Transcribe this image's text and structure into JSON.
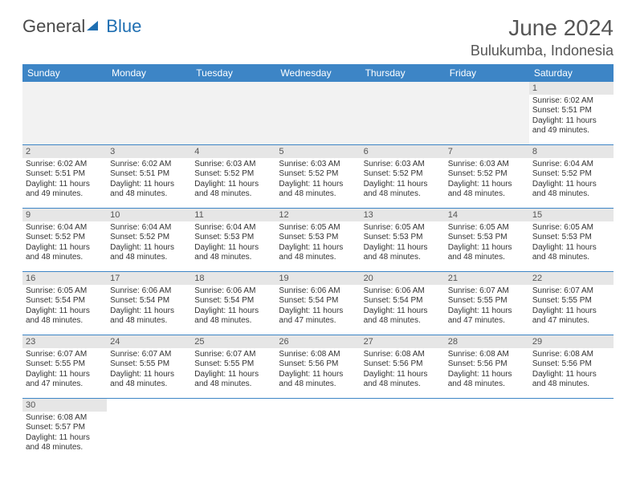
{
  "brand": {
    "part1": "General",
    "part2": "Blue"
  },
  "title": "June 2024",
  "location": "Bulukumba, Indonesia",
  "colors": {
    "header_bg": "#3d85c6",
    "header_text": "#ffffff",
    "daynum_bg": "#e6e6e6",
    "row_divider": "#3d85c6",
    "text": "#333333",
    "title_text": "#555555"
  },
  "weekdays": [
    "Sunday",
    "Monday",
    "Tuesday",
    "Wednesday",
    "Thursday",
    "Friday",
    "Saturday"
  ],
  "weeks": [
    [
      null,
      null,
      null,
      null,
      null,
      null,
      {
        "n": "1",
        "sr": "Sunrise: 6:02 AM",
        "ss": "Sunset: 5:51 PM",
        "d1": "Daylight: 11 hours",
        "d2": "and 49 minutes."
      }
    ],
    [
      {
        "n": "2",
        "sr": "Sunrise: 6:02 AM",
        "ss": "Sunset: 5:51 PM",
        "d1": "Daylight: 11 hours",
        "d2": "and 49 minutes."
      },
      {
        "n": "3",
        "sr": "Sunrise: 6:02 AM",
        "ss": "Sunset: 5:51 PM",
        "d1": "Daylight: 11 hours",
        "d2": "and 48 minutes."
      },
      {
        "n": "4",
        "sr": "Sunrise: 6:03 AM",
        "ss": "Sunset: 5:52 PM",
        "d1": "Daylight: 11 hours",
        "d2": "and 48 minutes."
      },
      {
        "n": "5",
        "sr": "Sunrise: 6:03 AM",
        "ss": "Sunset: 5:52 PM",
        "d1": "Daylight: 11 hours",
        "d2": "and 48 minutes."
      },
      {
        "n": "6",
        "sr": "Sunrise: 6:03 AM",
        "ss": "Sunset: 5:52 PM",
        "d1": "Daylight: 11 hours",
        "d2": "and 48 minutes."
      },
      {
        "n": "7",
        "sr": "Sunrise: 6:03 AM",
        "ss": "Sunset: 5:52 PM",
        "d1": "Daylight: 11 hours",
        "d2": "and 48 minutes."
      },
      {
        "n": "8",
        "sr": "Sunrise: 6:04 AM",
        "ss": "Sunset: 5:52 PM",
        "d1": "Daylight: 11 hours",
        "d2": "and 48 minutes."
      }
    ],
    [
      {
        "n": "9",
        "sr": "Sunrise: 6:04 AM",
        "ss": "Sunset: 5:52 PM",
        "d1": "Daylight: 11 hours",
        "d2": "and 48 minutes."
      },
      {
        "n": "10",
        "sr": "Sunrise: 6:04 AM",
        "ss": "Sunset: 5:52 PM",
        "d1": "Daylight: 11 hours",
        "d2": "and 48 minutes."
      },
      {
        "n": "11",
        "sr": "Sunrise: 6:04 AM",
        "ss": "Sunset: 5:53 PM",
        "d1": "Daylight: 11 hours",
        "d2": "and 48 minutes."
      },
      {
        "n": "12",
        "sr": "Sunrise: 6:05 AM",
        "ss": "Sunset: 5:53 PM",
        "d1": "Daylight: 11 hours",
        "d2": "and 48 minutes."
      },
      {
        "n": "13",
        "sr": "Sunrise: 6:05 AM",
        "ss": "Sunset: 5:53 PM",
        "d1": "Daylight: 11 hours",
        "d2": "and 48 minutes."
      },
      {
        "n": "14",
        "sr": "Sunrise: 6:05 AM",
        "ss": "Sunset: 5:53 PM",
        "d1": "Daylight: 11 hours",
        "d2": "and 48 minutes."
      },
      {
        "n": "15",
        "sr": "Sunrise: 6:05 AM",
        "ss": "Sunset: 5:53 PM",
        "d1": "Daylight: 11 hours",
        "d2": "and 48 minutes."
      }
    ],
    [
      {
        "n": "16",
        "sr": "Sunrise: 6:05 AM",
        "ss": "Sunset: 5:54 PM",
        "d1": "Daylight: 11 hours",
        "d2": "and 48 minutes."
      },
      {
        "n": "17",
        "sr": "Sunrise: 6:06 AM",
        "ss": "Sunset: 5:54 PM",
        "d1": "Daylight: 11 hours",
        "d2": "and 48 minutes."
      },
      {
        "n": "18",
        "sr": "Sunrise: 6:06 AM",
        "ss": "Sunset: 5:54 PM",
        "d1": "Daylight: 11 hours",
        "d2": "and 48 minutes."
      },
      {
        "n": "19",
        "sr": "Sunrise: 6:06 AM",
        "ss": "Sunset: 5:54 PM",
        "d1": "Daylight: 11 hours",
        "d2": "and 47 minutes."
      },
      {
        "n": "20",
        "sr": "Sunrise: 6:06 AM",
        "ss": "Sunset: 5:54 PM",
        "d1": "Daylight: 11 hours",
        "d2": "and 48 minutes."
      },
      {
        "n": "21",
        "sr": "Sunrise: 6:07 AM",
        "ss": "Sunset: 5:55 PM",
        "d1": "Daylight: 11 hours",
        "d2": "and 47 minutes."
      },
      {
        "n": "22",
        "sr": "Sunrise: 6:07 AM",
        "ss": "Sunset: 5:55 PM",
        "d1": "Daylight: 11 hours",
        "d2": "and 47 minutes."
      }
    ],
    [
      {
        "n": "23",
        "sr": "Sunrise: 6:07 AM",
        "ss": "Sunset: 5:55 PM",
        "d1": "Daylight: 11 hours",
        "d2": "and 47 minutes."
      },
      {
        "n": "24",
        "sr": "Sunrise: 6:07 AM",
        "ss": "Sunset: 5:55 PM",
        "d1": "Daylight: 11 hours",
        "d2": "and 48 minutes."
      },
      {
        "n": "25",
        "sr": "Sunrise: 6:07 AM",
        "ss": "Sunset: 5:55 PM",
        "d1": "Daylight: 11 hours",
        "d2": "and 48 minutes."
      },
      {
        "n": "26",
        "sr": "Sunrise: 6:08 AM",
        "ss": "Sunset: 5:56 PM",
        "d1": "Daylight: 11 hours",
        "d2": "and 48 minutes."
      },
      {
        "n": "27",
        "sr": "Sunrise: 6:08 AM",
        "ss": "Sunset: 5:56 PM",
        "d1": "Daylight: 11 hours",
        "d2": "and 48 minutes."
      },
      {
        "n": "28",
        "sr": "Sunrise: 6:08 AM",
        "ss": "Sunset: 5:56 PM",
        "d1": "Daylight: 11 hours",
        "d2": "and 48 minutes."
      },
      {
        "n": "29",
        "sr": "Sunrise: 6:08 AM",
        "ss": "Sunset: 5:56 PM",
        "d1": "Daylight: 11 hours",
        "d2": "and 48 minutes."
      }
    ],
    [
      {
        "n": "30",
        "sr": "Sunrise: 6:08 AM",
        "ss": "Sunset: 5:57 PM",
        "d1": "Daylight: 11 hours",
        "d2": "and 48 minutes."
      },
      null,
      null,
      null,
      null,
      null,
      null
    ]
  ]
}
